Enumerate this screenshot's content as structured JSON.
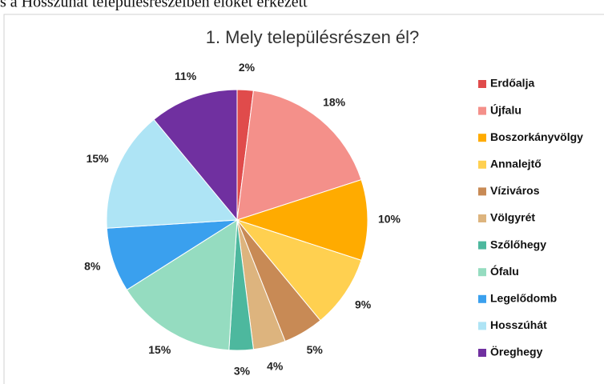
{
  "page_header": "s a Hosszúhát településrészeiben élőket érkezett",
  "chart_data": {
    "type": "pie",
    "title": "1. Mely településrészen él?",
    "categories": [
      "Erdőalja",
      "Újfalu",
      "Boszorkányvölgy",
      "Annalejtő",
      "Víziváros",
      "Völgyrét",
      "Szőlőhegy",
      "Ófalu",
      "Legelődomb",
      "Hosszúhát",
      "Öreghegy"
    ],
    "values": [
      2,
      18,
      10,
      9,
      5,
      4,
      3,
      15,
      8,
      15,
      11
    ],
    "value_labels": [
      "2%",
      "18%",
      "10%",
      "9%",
      "5%",
      "4%",
      "3%",
      "15%",
      "8%",
      "15%",
      "11%"
    ],
    "colors": [
      "#e04b4b",
      "#f4908a",
      "#ffab00",
      "#ffd050",
      "#c88a55",
      "#ddb47e",
      "#4db89e",
      "#95dcc0",
      "#3aa0ee",
      "#aee4f5",
      "#7030a0"
    ],
    "legend": "right"
  }
}
